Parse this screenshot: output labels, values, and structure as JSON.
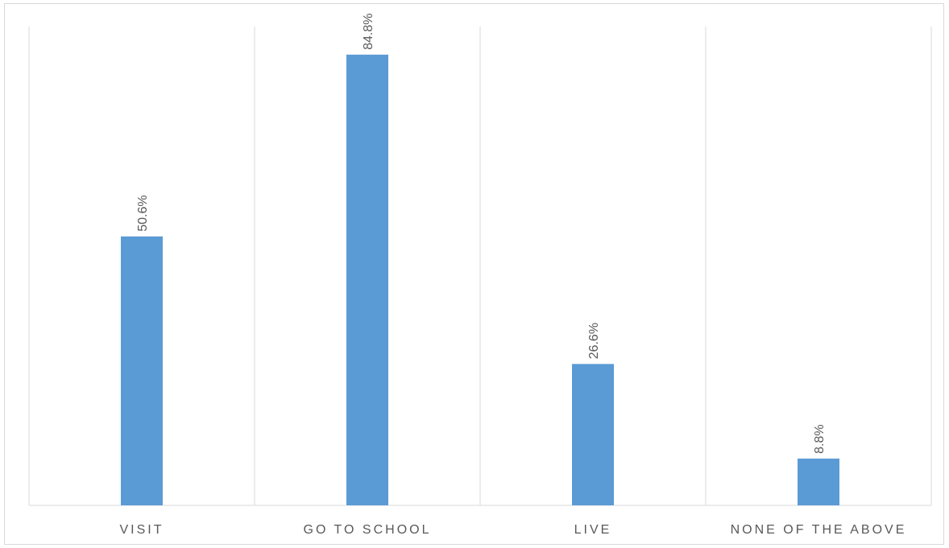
{
  "chart_data": {
    "type": "bar",
    "categories": [
      "VISIT",
      "GO TO SCHOOL",
      "LIVE",
      "NONE OF THE ABOVE"
    ],
    "values": [
      50.6,
      84.8,
      26.6,
      8.8
    ],
    "data_labels": [
      "50.6%",
      "84.8%",
      "26.6%",
      "8.8%"
    ],
    "unit": "%",
    "title": "",
    "xlabel": "",
    "ylabel": "",
    "ylim": [
      0,
      90
    ],
    "grid": "vertical category separators",
    "legend": "none",
    "bar_color": "#5b9bd5"
  }
}
